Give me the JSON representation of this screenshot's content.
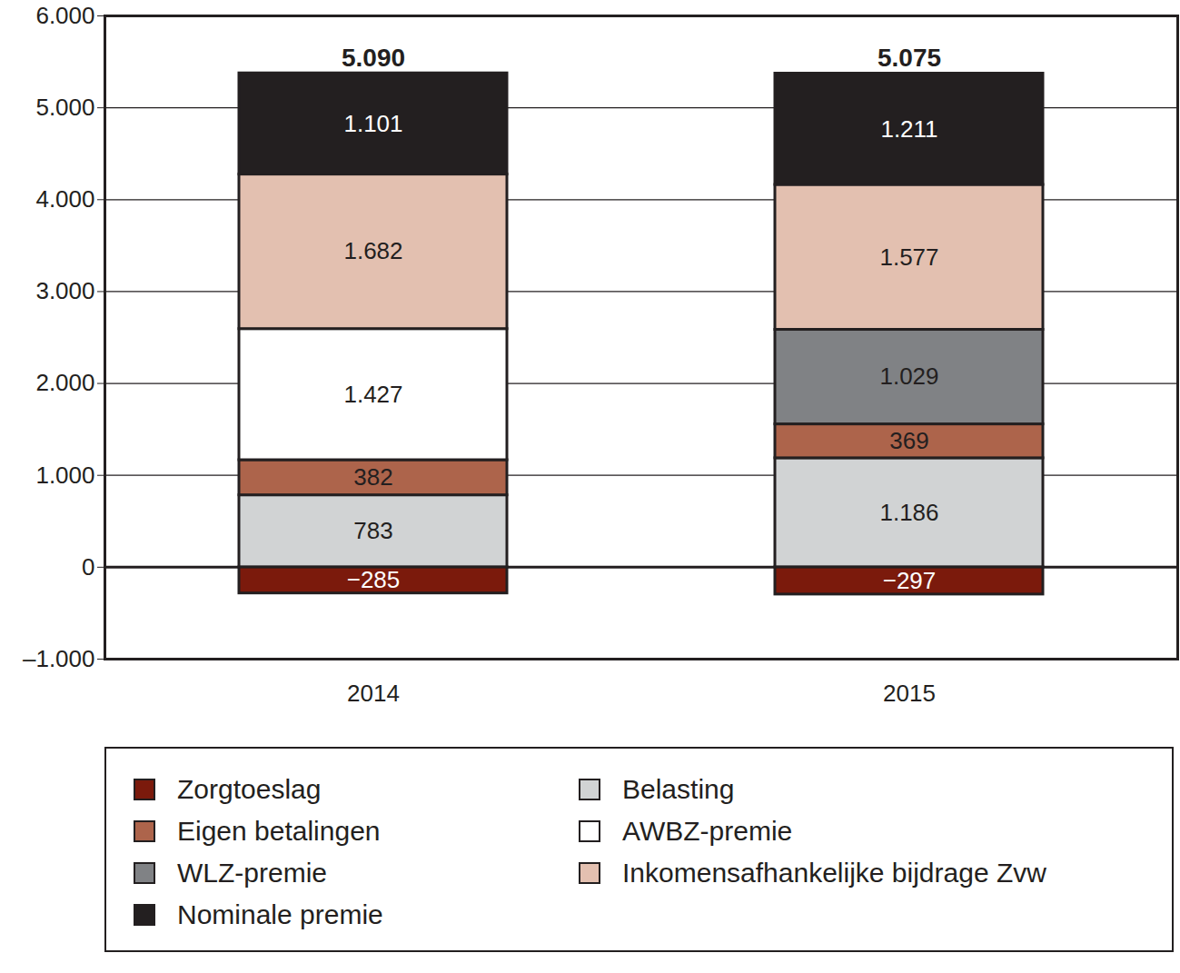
{
  "chart_data": {
    "type": "bar",
    "stacked": true,
    "data_labels": true,
    "grid": true,
    "legend": "bottom",
    "categories": [
      "2014",
      "2015"
    ],
    "series": [
      {
        "name": "Zorgtoeslag",
        "color": "#7b1a0c",
        "values": [
          -285,
          -297
        ],
        "value_labels": [
          "−285",
          "−297"
        ]
      },
      {
        "name": "Belasting",
        "color": "#d1d3d4",
        "values": [
          783,
          1186
        ],
        "value_labels": [
          "783",
          "1.186"
        ]
      },
      {
        "name": "Eigen betalingen",
        "color": "#ad644b",
        "values": [
          382,
          369
        ],
        "value_labels": [
          "382",
          "369"
        ]
      },
      {
        "name": "AWBZ-premie",
        "color": "#ffffff",
        "values": [
          1427,
          null
        ],
        "value_labels": [
          "1.427",
          null
        ]
      },
      {
        "name": "WLZ-premie",
        "color": "#808285",
        "values": [
          null,
          1029
        ],
        "value_labels": [
          null,
          "1.029"
        ]
      },
      {
        "name": "Inkomensafhankelijke bijdrage Zvw",
        "color": "#e3c0b0",
        "values": [
          1682,
          1577
        ],
        "value_labels": [
          "1.682",
          "1.577"
        ]
      },
      {
        "name": "Nominale premie",
        "color": "#231f20",
        "values": [
          1101,
          1211
        ],
        "value_labels": [
          "1.101",
          "1.211"
        ]
      }
    ],
    "totals": {
      "values": [
        5090,
        5075
      ],
      "value_labels": [
        "5.090",
        "5.075"
      ]
    },
    "ylim": [
      -1000,
      6000
    ],
    "yticks": [
      {
        "value": -1000,
        "label": "–1.000"
      },
      0,
      {
        "value": 1000,
        "label": "1.000"
      },
      {
        "value": 2000,
        "label": "2.000"
      },
      {
        "value": 3000,
        "label": "3.000"
      },
      {
        "value": 4000,
        "label": "4.000"
      },
      {
        "value": 5000,
        "label": "5.000"
      },
      {
        "value": 6000,
        "label": "6.000"
      }
    ]
  }
}
